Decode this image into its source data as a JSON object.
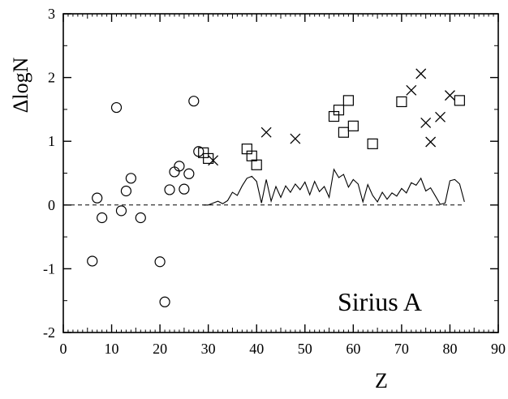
{
  "chart_data": {
    "type": "scatter",
    "xlabel": "Z",
    "ylabel": "ΔlogN",
    "annotation": "Sirius A",
    "xlim": [
      0,
      90
    ],
    "ylim": [
      -2,
      3
    ],
    "x_ticks": [
      "0",
      "10",
      "20",
      "30",
      "40",
      "50",
      "60",
      "70",
      "80",
      "90"
    ],
    "y_ticks": [
      "-2",
      "-1",
      "0",
      "1",
      "2",
      "3"
    ],
    "grid": false,
    "reference_line": {
      "y": 0,
      "x_range": [
        0,
        83
      ],
      "style": "dashed"
    },
    "series": [
      {
        "marker": "circle",
        "points": [
          [
            6,
            -0.88
          ],
          [
            7,
            0.11
          ],
          [
            8,
            -0.2
          ],
          [
            11,
            1.53
          ],
          [
            12,
            -0.09
          ],
          [
            13,
            0.22
          ],
          [
            14,
            0.42
          ],
          [
            16,
            -0.2
          ],
          [
            20,
            -0.89
          ],
          [
            21,
            -1.52
          ],
          [
            22,
            0.24
          ],
          [
            23,
            0.52
          ],
          [
            24,
            0.61
          ],
          [
            25,
            0.25
          ],
          [
            26,
            0.49
          ],
          [
            27,
            1.63
          ],
          [
            28,
            0.84
          ]
        ]
      },
      {
        "marker": "square",
        "points": [
          [
            29,
            0.82
          ],
          [
            30,
            0.73
          ],
          [
            38,
            0.88
          ],
          [
            39,
            0.77
          ],
          [
            40,
            0.63
          ],
          [
            56,
            1.39
          ],
          [
            57,
            1.49
          ],
          [
            58,
            1.14
          ],
          [
            59,
            1.64
          ],
          [
            60,
            1.24
          ],
          [
            64,
            0.96
          ],
          [
            70,
            1.62
          ],
          [
            82,
            1.64
          ]
        ]
      },
      {
        "marker": "cross",
        "points": [
          [
            31,
            0.7
          ],
          [
            42,
            1.14
          ],
          [
            48,
            1.04
          ],
          [
            72,
            1.8
          ],
          [
            74,
            2.06
          ],
          [
            75,
            1.29
          ],
          [
            76,
            0.99
          ],
          [
            78,
            1.38
          ],
          [
            80,
            1.72
          ]
        ]
      },
      {
        "marker": "line",
        "points": [
          [
            29,
            0.0
          ],
          [
            30,
            0.0
          ],
          [
            31,
            0.03
          ],
          [
            32,
            0.06
          ],
          [
            33,
            0.02
          ],
          [
            34,
            0.07
          ],
          [
            35,
            0.2
          ],
          [
            36,
            0.15
          ],
          [
            37,
            0.3
          ],
          [
            38,
            0.42
          ],
          [
            39,
            0.45
          ],
          [
            40,
            0.37
          ],
          [
            41,
            0.03
          ],
          [
            42,
            0.4
          ],
          [
            43,
            0.06
          ],
          [
            44,
            0.29
          ],
          [
            45,
            0.12
          ],
          [
            46,
            0.3
          ],
          [
            47,
            0.2
          ],
          [
            48,
            0.33
          ],
          [
            49,
            0.24
          ],
          [
            50,
            0.36
          ],
          [
            51,
            0.16
          ],
          [
            52,
            0.37
          ],
          [
            53,
            0.21
          ],
          [
            54,
            0.29
          ],
          [
            55,
            0.12
          ],
          [
            56,
            0.56
          ],
          [
            57,
            0.43
          ],
          [
            58,
            0.48
          ],
          [
            59,
            0.28
          ],
          [
            60,
            0.4
          ],
          [
            61,
            0.33
          ],
          [
            62,
            0.05
          ],
          [
            63,
            0.32
          ],
          [
            64,
            0.15
          ],
          [
            65,
            0.05
          ],
          [
            66,
            0.2
          ],
          [
            67,
            0.09
          ],
          [
            68,
            0.19
          ],
          [
            69,
            0.14
          ],
          [
            70,
            0.26
          ],
          [
            71,
            0.19
          ],
          [
            72,
            0.35
          ],
          [
            73,
            0.31
          ],
          [
            74,
            0.42
          ],
          [
            75,
            0.22
          ],
          [
            76,
            0.27
          ],
          [
            77,
            0.14
          ],
          [
            78,
            0.01
          ],
          [
            79,
            0.03
          ],
          [
            80,
            0.38
          ],
          [
            81,
            0.4
          ],
          [
            82,
            0.33
          ],
          [
            83,
            0.05
          ]
        ]
      }
    ]
  }
}
